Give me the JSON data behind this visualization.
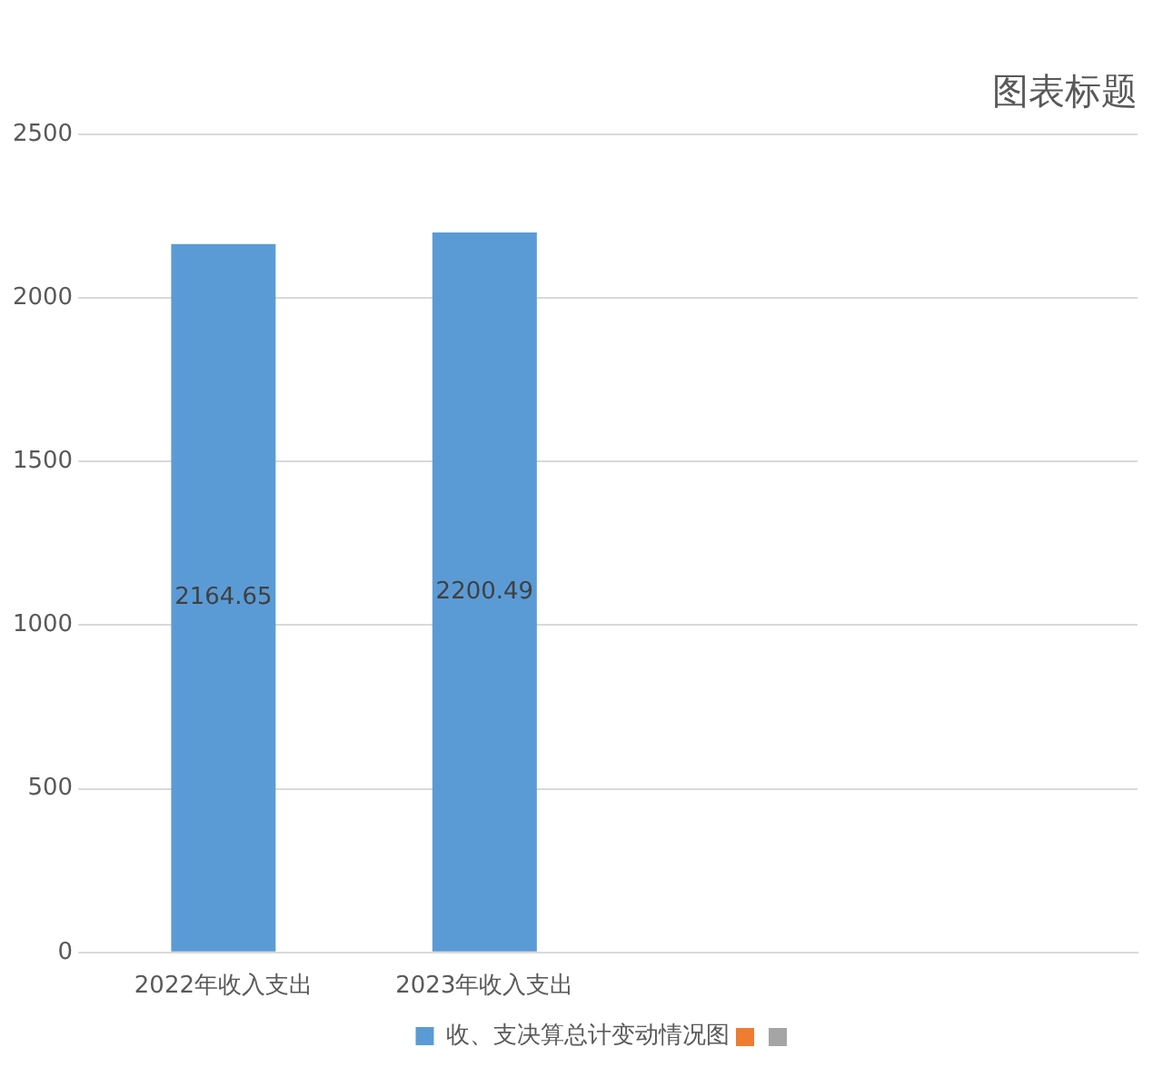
{
  "chart_data": {
    "type": "bar",
    "title": "图表标题",
    "categories": [
      "2022年收入支出",
      "2023年收入支出",
      null,
      null
    ],
    "series": [
      {
        "name": "收、支决算总计变动情况图",
        "color": "#5b9bd5",
        "values": [
          2164.65,
          2200.49,
          null,
          null
        ]
      }
    ],
    "ylim": [
      0,
      2500
    ],
    "yticks": [
      0,
      500,
      1000,
      1500,
      2000,
      2500
    ],
    "grid": "y",
    "legend": "bottom",
    "data_labels": true
  }
}
